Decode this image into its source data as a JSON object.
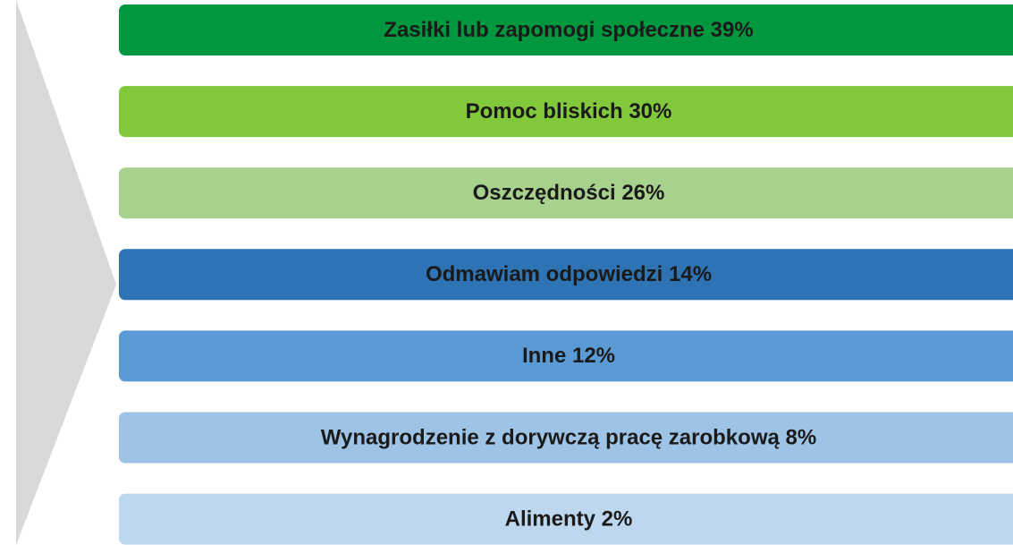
{
  "items": [
    {
      "label": "Zasiłki lub zapomogi społeczne 39%",
      "color": "#00973f"
    },
    {
      "label": "Pomoc bliskich 30%",
      "color": "#82c83b"
    },
    {
      "label": "Oszczędności 26%",
      "color": "#a9d18e"
    },
    {
      "label": "Odmawiam odpowiedzi 14%",
      "color": "#2e74b5"
    },
    {
      "label": "Inne 12%",
      "color": "#5b9bd5"
    },
    {
      "label": "Wynagrodzenie z dorywczą pracę zarobkową 8%",
      "color": "#9dc3e6"
    },
    {
      "label": "Alimenty 2%",
      "color": "#bdd7ee"
    }
  ]
}
